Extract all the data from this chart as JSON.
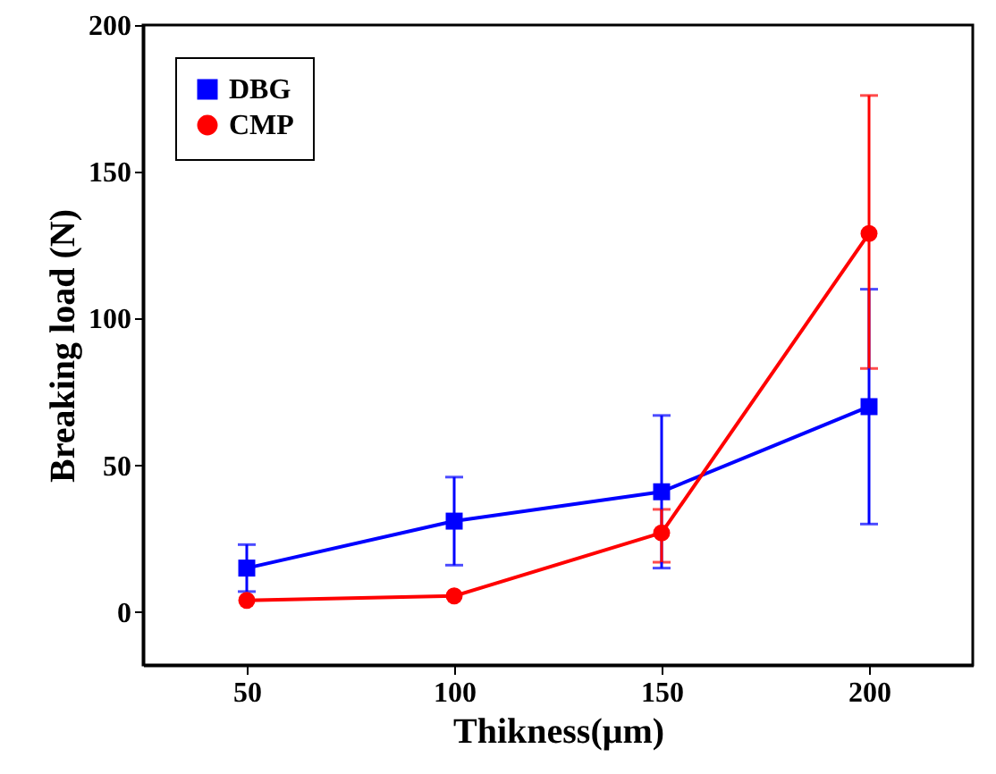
{
  "chart_data": {
    "type": "line",
    "xlabel": "Thikness(μm)",
    "ylabel": "Breaking load (N)",
    "x": [
      50,
      100,
      150,
      200
    ],
    "xlim": [
      25,
      225
    ],
    "xticks": [
      50,
      100,
      150,
      200
    ],
    "ylim": [
      -18,
      200
    ],
    "yticks": [
      0,
      50,
      100,
      150,
      200
    ],
    "legend": "top left",
    "grid": false,
    "line_style": "solid",
    "series": [
      {
        "name": "DBG",
        "color": "#0000ff",
        "marker": "square",
        "values": [
          15,
          31,
          41,
          70
        ],
        "errors": [
          [
            7,
            23
          ],
          [
            16,
            46
          ],
          [
            15,
            67
          ],
          [
            30,
            110
          ]
        ]
      },
      {
        "name": "CMP",
        "color": "#ff0000",
        "marker": "circle",
        "values": [
          4,
          5.5,
          27,
          129
        ],
        "errors": [
          null,
          null,
          [
            17,
            35
          ],
          [
            83,
            176
          ]
        ]
      }
    ]
  }
}
